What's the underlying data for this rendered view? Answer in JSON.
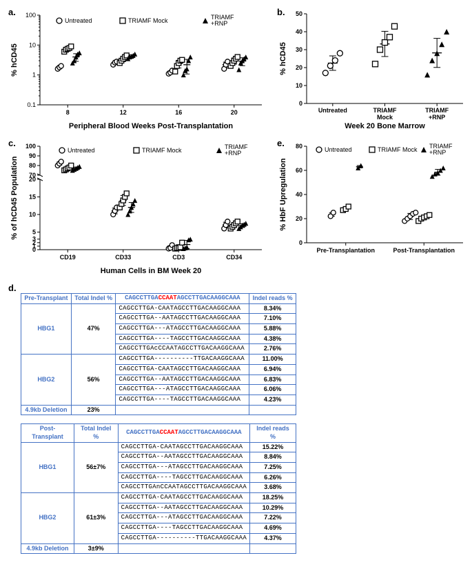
{
  "panels": {
    "a": {
      "label": "a.",
      "ylabel": "% hCD45",
      "xlabel": "Peripheral Blood Weeks Post-Transplantation",
      "yscale": "log",
      "ylim": [
        0.1,
        100
      ],
      "yticks": [
        0.1,
        1,
        10,
        100
      ],
      "xticks": [
        8,
        12,
        16,
        20
      ],
      "groups": [
        {
          "name": "Untreated",
          "marker": "circle-open"
        },
        {
          "name": "TRIAMF Mock",
          "marker": "square-open"
        },
        {
          "name": "TRIAMF +RNP",
          "marker": "triangle-filled"
        }
      ],
      "data": {
        "8": {
          "Untreated": [
            1.6,
            1.8,
            2.0
          ],
          "TRIAMF Mock": [
            6,
            7,
            7.5,
            8,
            9
          ],
          "TRIAMF +RNP": [
            2.5,
            3,
            4,
            5,
            5.5
          ]
        },
        "12": {
          "Untreated": [
            2.2,
            2.6,
            2.8
          ],
          "TRIAMF Mock": [
            2.5,
            3,
            3.5,
            4,
            4.5
          ],
          "TRIAMF +RNP": [
            3.5,
            4,
            4.2,
            4.5,
            5
          ]
        },
        "16": {
          "Untreated": [
            1.1,
            1.2,
            1.4
          ],
          "TRIAMF Mock": [
            1.3,
            2,
            2.5,
            3,
            3.2
          ],
          "TRIAMF +RNP": [
            1,
            1.4,
            1.6,
            3,
            4
          ]
        },
        "20": {
          "Untreated": [
            1.6,
            2.2,
            2.8
          ],
          "TRIAMF Mock": [
            2,
            2.5,
            3,
            3.5,
            4
          ],
          "TRIAMF +RNP": [
            1.5,
            2.5,
            3,
            3.5,
            4
          ]
        }
      }
    },
    "b": {
      "label": "b.",
      "ylabel": "% hCD45",
      "xlabel": "Week 20 Bone Marrow",
      "ylim": [
        0,
        50
      ],
      "yticks": [
        0,
        10,
        20,
        30,
        40,
        50
      ],
      "categories": [
        "Untreated",
        "TRIAMF Mock",
        "TRIAMF +RNP"
      ],
      "data": {
        "Untreated": [
          17,
          21,
          24,
          28
        ],
        "TRIAMF Mock": [
          22,
          30,
          34,
          37,
          43
        ],
        "TRIAMF +RNP": [
          16,
          24,
          28,
          33,
          40
        ]
      },
      "markers": {
        "Untreated": "circle-open",
        "TRIAMF Mock": "square-open",
        "TRIAMF +RNP": "triangle-filled"
      }
    },
    "c": {
      "label": "c.",
      "ylabel": "% of hCD45 Population",
      "xlabel": "Human  Cells in BM Week 20",
      "categories": [
        "CD19",
        "CD33",
        "CD3",
        "CD34"
      ],
      "yticks_lower": [
        0,
        1,
        2,
        3,
        5,
        10,
        15,
        20
      ],
      "yticks_upper": [
        70,
        80,
        90,
        100
      ],
      "groups": [
        {
          "name": "Untreated",
          "marker": "circle-open"
        },
        {
          "name": "TRIAMF Mock",
          "marker": "square-open"
        },
        {
          "name": "TRIAMF +RNP",
          "marker": "triangle-filled"
        }
      ],
      "data": {
        "CD19": {
          "Untreated": [
            80,
            82,
            84
          ],
          "TRIAMF Mock": [
            75,
            76,
            77,
            78,
            80
          ],
          "TRIAMF +RNP": [
            75,
            76,
            77,
            78,
            79
          ]
        },
        "CD33": {
          "Untreated": [
            10,
            11,
            12
          ],
          "TRIAMF Mock": [
            12,
            13,
            14,
            15,
            16
          ],
          "TRIAMF +RNP": [
            10,
            11,
            12,
            13,
            14
          ]
        },
        "CD3": {
          "Untreated": [
            0.3,
            0.5,
            1.3
          ],
          "TRIAMF Mock": [
            0.3,
            0.5,
            0.5,
            0.7,
            2.0
          ],
          "TRIAMF +RNP": [
            0.3,
            0.5,
            0.7,
            2.8,
            3.0
          ]
        },
        "CD34": {
          "Untreated": [
            6,
            7,
            8
          ],
          "TRIAMF Mock": [
            6,
            6.5,
            7,
            7.5,
            8
          ],
          "TRIAMF +RNP": [
            6,
            6.5,
            7,
            7.2,
            7.5
          ]
        }
      }
    },
    "e": {
      "label": "e.",
      "ylabel": "% HbF Upregulation",
      "ylim": [
        0,
        80
      ],
      "yticks": [
        0,
        20,
        40,
        60,
        80
      ],
      "categories": [
        "Pre-Transplantation",
        "Post-Transplantation"
      ],
      "groups": [
        {
          "name": "Untreated",
          "marker": "circle-open"
        },
        {
          "name": "TRIAMF Mock",
          "marker": "square-open"
        },
        {
          "name": "TRIAMF +RNP",
          "marker": "triangle-filled"
        }
      ],
      "data": {
        "Pre-Transplantation": {
          "Untreated": [
            22,
            25
          ],
          "TRIAMF Mock": [
            27,
            28,
            30
          ],
          "TRIAMF +RNP": [
            62,
            64
          ]
        },
        "Post-Transplantation": {
          "Untreated": [
            18,
            20,
            22,
            24,
            25
          ],
          "TRIAMF Mock": [
            18,
            20,
            21,
            22,
            23
          ],
          "TRIAMF +RNP": [
            55,
            57,
            58,
            60,
            62
          ]
        }
      }
    },
    "d": {
      "label": "d.",
      "tables": [
        {
          "title": "Pre-Transplant",
          "header": [
            "Total Indel %",
            "CAGCCTTGACCAATAGCCTTGACAAGGCAAA",
            "Indel reads %"
          ],
          "groups": [
            {
              "gene": "HBG1",
              "total": "47%",
              "rows": [
                {
                  "seq": "CAGCCTTGA-CAATAGCCTTGACAAGGCAAA",
                  "pct": "8.34%"
                },
                {
                  "seq": "CAGCCTTGA--AATAGCCTTGACAAGGCAAA",
                  "pct": "7.10%"
                },
                {
                  "seq": "CAGCCTTGA---ATAGCCTTGACAAGGCAAA",
                  "pct": "5.88%"
                },
                {
                  "seq": "CAGCCTTGA----TAGCCTTGACAAGGCAAA",
                  "pct": "4.38%"
                },
                {
                  "seq": "CAGCCTTGAcCCAATAGCCTTGACAAGGCAAA",
                  "pct": "2.76%"
                }
              ]
            },
            {
              "gene": "HBG2",
              "total": "56%",
              "rows": [
                {
                  "seq": "CAGCCTTGA----------TTGACAAGGCAAA",
                  "pct": "11.00%"
                },
                {
                  "seq": "CAGCCTTGA-CAATAGCCTTGACAAGGCAAA",
                  "pct": "6.94%"
                },
                {
                  "seq": "CAGCCTTGA--AATAGCCTTGACAAGGCAAA",
                  "pct": "6.83%"
                },
                {
                  "seq": "CAGCCTTGA---ATAGCCTTGACAAGGCAAA",
                  "pct": "6.06%"
                },
                {
                  "seq": "CAGCCTTGA----TAGCCTTGACAAGGCAAA",
                  "pct": "4.23%"
                }
              ]
            }
          ],
          "deletion": {
            "label": "4.9kb Deletion",
            "pct": "23%"
          }
        },
        {
          "title": "Post-Transplant",
          "header": [
            "Total Indel %",
            "CAGCCTTGACCAATAGCCTTGACAAGGCAAA",
            "Indel reads %"
          ],
          "groups": [
            {
              "gene": "HBG1",
              "total": "56±7%",
              "rows": [
                {
                  "seq": "CAGCCTTGA-CAATAGCCTTGACAAGGCAAA",
                  "pct": "15.22%"
                },
                {
                  "seq": "CAGCCTTGA--AATAGCCTTGACAAGGCAAA",
                  "pct": "8.84%"
                },
                {
                  "seq": "CAGCCTTGA---ATAGCCTTGACAAGGCAAA",
                  "pct": "7.25%"
                },
                {
                  "seq": "CAGCCTTGA----TAGCCTTGACAAGGCAAA",
                  "pct": "6.26%"
                },
                {
                  "seq": "CAGCCTTGAnCCAATAGCCTTGACAAGGCAAA",
                  "pct": "3.68%"
                }
              ]
            },
            {
              "gene": "HBG2",
              "total": "61±3%",
              "rows": [
                {
                  "seq": "CAGCCTTGA-CAATAGCCTTGACAAGGCAAA",
                  "pct": "18.25%"
                },
                {
                  "seq": "CAGCCTTGA--AATAGCCTTGACAAGGCAAA",
                  "pct": "10.29%"
                },
                {
                  "seq": "CAGCCTTGA---ATAGCCTTGACAAGGCAAA",
                  "pct": "7.22%"
                },
                {
                  "seq": "CAGCCTTGA----TAGCCTTGACAAGGCAAA",
                  "pct": "4.69%"
                },
                {
                  "seq": "CAGCCTTGA----------TTGACAAGGCAAA",
                  "pct": "4.37%"
                }
              ]
            }
          ],
          "deletion": {
            "label": "4.9kb Deletion",
            "pct": "3±9%"
          }
        }
      ]
    }
  }
}
